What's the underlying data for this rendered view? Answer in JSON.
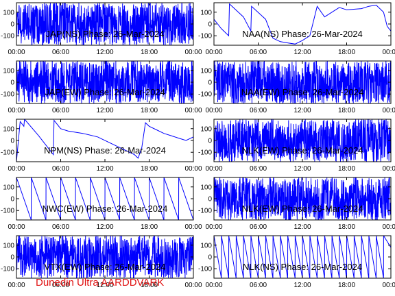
{
  "footer": "Dunedin Ultra AARDDVARK",
  "trace_color": "#0000ff",
  "footer_color": "#e01010",
  "chart_data": [
    {
      "type": "line",
      "title": "JAP(NS) Phase: 26-Mar-2024",
      "x_ticks": [
        "00:00",
        "06:00",
        "12:00",
        "18:00",
        "00:00"
      ],
      "y_ticks": [
        100,
        0,
        -100
      ],
      "ylim": [
        -180,
        180
      ],
      "xlim_hours": [
        0,
        24
      ],
      "grid": false,
      "style": "dense",
      "series": [
        {
          "x": [
            0,
            1,
            1.5,
            3,
            6,
            9,
            12,
            15,
            18,
            21,
            22.5,
            23,
            24
          ],
          "y": [
            100,
            40,
            0,
            -180,
            180,
            -180,
            180,
            -180,
            180,
            -180,
            0,
            -30,
            40
          ]
        }
      ]
    },
    {
      "type": "line",
      "title": "NAA(NS) Phase: 26-Mar-2024",
      "x_ticks": [
        "00:00",
        "06:00",
        "12:00",
        "18:00",
        "00:00"
      ],
      "y_ticks": [
        100,
        0,
        -100
      ],
      "ylim": [
        -180,
        180
      ],
      "xlim_hours": [
        0,
        24
      ],
      "grid": false,
      "style": "sawtooth",
      "series": [
        {
          "x": [
            0,
            1,
            2,
            2.1,
            4,
            5,
            5.1,
            7,
            8,
            9,
            10,
            11,
            12,
            13,
            14,
            15,
            16,
            17,
            18,
            20,
            21,
            22,
            23,
            23.5,
            24
          ],
          "y": [
            40,
            -40,
            -100,
            170,
            60,
            -60,
            150,
            40,
            -120,
            -150,
            -160,
            -170,
            -140,
            -100,
            150,
            60,
            100,
            140,
            120,
            130,
            150,
            160,
            100,
            -20,
            -60
          ]
        }
      ]
    },
    {
      "type": "line",
      "title": "JAP(EW) Phase: 26-Mar-2024",
      "x_ticks": [
        "00:00",
        "06:00",
        "12:00",
        "18:00",
        "00:00"
      ],
      "y_ticks": [
        100,
        0,
        -100
      ],
      "ylim": [
        -180,
        180
      ],
      "xlim_hours": [
        0,
        24
      ],
      "grid": false,
      "style": "dense",
      "series": [
        {
          "x": [
            0,
            2,
            4,
            6,
            8,
            10,
            12,
            14,
            16,
            18,
            20,
            22,
            24
          ],
          "y": [
            180,
            -180,
            180,
            -180,
            180,
            -180,
            180,
            -180,
            180,
            -180,
            180,
            -180,
            180
          ]
        }
      ]
    },
    {
      "type": "line",
      "title": "NAA(EW) Phase: 26-Mar-2024",
      "x_ticks": [
        "00:00",
        "06:00",
        "12:00",
        "18:00",
        "00:00"
      ],
      "y_ticks": [
        100,
        0,
        -100
      ],
      "ylim": [
        -180,
        180
      ],
      "xlim_hours": [
        0,
        24
      ],
      "grid": false,
      "style": "dense",
      "series": [
        {
          "x": [
            0,
            3,
            6,
            8,
            9,
            10,
            11,
            12,
            13,
            14,
            15,
            16,
            18,
            20,
            22,
            24
          ],
          "y": [
            180,
            -180,
            180,
            -60,
            -100,
            -120,
            -140,
            -150,
            -140,
            -120,
            -80,
            180,
            -180,
            180,
            -100,
            60
          ]
        }
      ]
    },
    {
      "type": "line",
      "title": "NPM(NS) Phase: 26-Mar-2024",
      "x_ticks": [
        "00:00",
        "06:00",
        "12:00",
        "18:00",
        "00:00"
      ],
      "y_ticks": [
        100,
        0,
        -100
      ],
      "ylim": [
        -180,
        180
      ],
      "xlim_hours": [
        0,
        24
      ],
      "grid": false,
      "style": "sawtooth",
      "series": [
        {
          "x": [
            0,
            0.5,
            1,
            1.1,
            3,
            5,
            5.1,
            6,
            7,
            9,
            11,
            13,
            14,
            15,
            16,
            16.5,
            17,
            17.5,
            18,
            19,
            20,
            21,
            22,
            23,
            24
          ],
          "y": [
            -180,
            160,
            120,
            180,
            40,
            -120,
            170,
            100,
            80,
            60,
            30,
            -30,
            -60,
            -90,
            -120,
            -150,
            -60,
            150,
            120,
            90,
            60,
            40,
            20,
            0,
            30
          ]
        }
      ]
    },
    {
      "type": "line",
      "title": "NLK(EW) Phase: 26-Mar-2024",
      "x_ticks": [
        "00:00",
        "06:00",
        "12:00",
        "18:00",
        "00:00"
      ],
      "y_ticks": [
        100,
        0,
        -100
      ],
      "ylim": [
        -180,
        180
      ],
      "xlim_hours": [
        0,
        24
      ],
      "grid": false,
      "style": "dense",
      "series": [
        {
          "x": [
            0,
            2,
            4,
            6,
            8,
            10,
            12,
            14,
            16,
            18,
            20,
            22,
            24
          ],
          "y": [
            180,
            -180,
            180,
            -180,
            180,
            -180,
            180,
            -180,
            180,
            -180,
            180,
            -180,
            180
          ]
        }
      ]
    },
    {
      "type": "line",
      "title": "NWC(EW) Phase: 26-Mar-2024",
      "x_ticks": [
        "00:00",
        "06:00",
        "12:00",
        "18:00",
        "00:00"
      ],
      "y_ticks": [
        100,
        0,
        -100
      ],
      "ylim": [
        -180,
        180
      ],
      "xlim_hours": [
        0,
        24
      ],
      "grid": false,
      "style": "sawtooth",
      "series": [
        {
          "x": [
            0,
            2,
            2.01,
            4,
            4.01,
            6,
            6.01,
            8,
            8.01,
            10,
            10.01,
            12,
            12.01,
            14,
            14.01,
            16,
            16.01,
            18,
            18.01,
            20,
            20.01,
            22,
            22.01,
            24
          ],
          "y": [
            180,
            -180,
            180,
            -180,
            180,
            -180,
            180,
            -180,
            180,
            -180,
            180,
            -180,
            180,
            -180,
            180,
            -180,
            180,
            -180,
            180,
            -180,
            180,
            -180,
            180,
            -180
          ]
        }
      ]
    },
    {
      "type": "line",
      "title": "NLK(EW) Phase: 26-Mar-2024",
      "x_ticks": [
        "00:00",
        "06:00",
        "12:00",
        "18:00",
        "00:00"
      ],
      "y_ticks": [
        100,
        0,
        -100
      ],
      "ylim": [
        -180,
        180
      ],
      "xlim_hours": [
        0,
        24
      ],
      "grid": false,
      "style": "dense",
      "series": [
        {
          "x": [
            0,
            2,
            4,
            6,
            8,
            10,
            12,
            14,
            16,
            18,
            20,
            22,
            24
          ],
          "y": [
            180,
            -180,
            180,
            -180,
            180,
            -180,
            180,
            -180,
            180,
            -180,
            180,
            -180,
            180
          ]
        }
      ]
    },
    {
      "type": "line",
      "title": "VTX(EW) Phase: 26-Mar-2024",
      "x_ticks": [
        "00:00",
        "06:00",
        "12:00",
        "18:00",
        "00:00"
      ],
      "y_ticks": [
        100,
        0,
        -100
      ],
      "ylim": [
        -180,
        180
      ],
      "xlim_hours": [
        0,
        24
      ],
      "grid": false,
      "style": "dense",
      "series": [
        {
          "x": [
            0,
            3,
            6,
            9,
            12,
            15,
            18,
            21,
            24
          ],
          "y": [
            180,
            -180,
            180,
            -180,
            180,
            -180,
            180,
            -180,
            180
          ]
        }
      ]
    },
    {
      "type": "line",
      "title": "NLK(NS) Phase: 26-Mar-2024",
      "x_ticks": [
        "00:00",
        "06:00",
        "12:00",
        "18:00",
        "00:00"
      ],
      "y_ticks": [
        100,
        0,
        -100
      ],
      "ylim": [
        -180,
        180
      ],
      "xlim_hours": [
        0,
        24
      ],
      "grid": false,
      "style": "sawtooth",
      "series": [
        {
          "x": [
            0,
            1,
            1.01,
            2,
            2.01,
            3,
            3.01,
            4,
            4.01,
            5,
            5.01,
            6,
            6.01,
            7,
            7.01,
            8,
            8.01,
            9,
            9.01,
            10,
            10.01,
            11,
            11.01,
            12,
            12.01,
            13,
            13.01,
            14,
            14.01,
            15,
            15.01,
            16,
            16.01,
            17,
            17.01,
            18,
            18.01,
            19,
            19.01,
            20,
            20.01,
            21,
            21.01,
            22,
            22.01,
            23,
            23.01,
            24
          ],
          "y": [
            180,
            -180,
            180,
            -180,
            180,
            -180,
            180,
            -180,
            180,
            -180,
            180,
            -180,
            180,
            -180,
            180,
            -180,
            180,
            -180,
            180,
            -180,
            180,
            -180,
            180,
            -180,
            180,
            -180,
            180,
            -180,
            180,
            -180,
            180,
            -180,
            180,
            -180,
            180,
            -180,
            180,
            -180,
            180,
            -180,
            180,
            -180,
            180,
            -180,
            180,
            -180,
            180,
            80
          ]
        }
      ]
    }
  ]
}
